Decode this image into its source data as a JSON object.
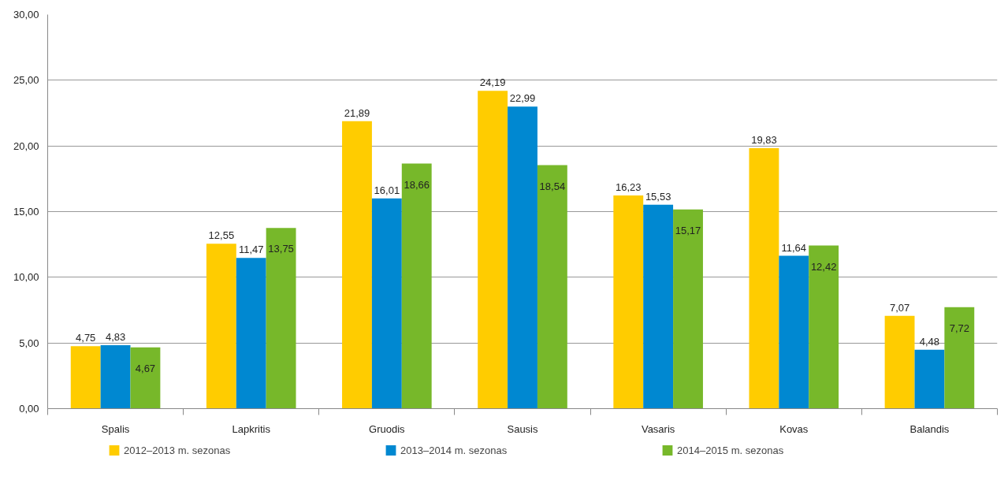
{
  "chart_data": {
    "type": "bar",
    "categories": [
      "Spalis",
      "Lapkritis",
      "Gruodis",
      "Sausis",
      "Vasaris",
      "Kovas",
      "Balandis"
    ],
    "series": [
      {
        "name": "2012–2013 m. sezonas",
        "color": "#ffcc00",
        "values": [
          4.75,
          12.55,
          21.89,
          24.19,
          16.23,
          19.83,
          7.07
        ],
        "value_labels": [
          "4,75",
          "12,55",
          "21,89",
          "24,19",
          "16,23",
          "19,83",
          "7,07"
        ]
      },
      {
        "name": "2013–2014 m. sezonas",
        "color": "#0088d1",
        "values": [
          4.83,
          11.47,
          16.01,
          22.99,
          15.53,
          11.64,
          4.48
        ],
        "value_labels": [
          "4,83",
          "11,47",
          "16,01",
          "22,99",
          "15,53",
          "11,64",
          "4,48"
        ]
      },
      {
        "name": "2014–2015 m. sezonas",
        "color": "#77b82a",
        "values": [
          4.67,
          13.75,
          18.66,
          18.54,
          15.17,
          12.42,
          7.72
        ],
        "value_labels": [
          "4,67",
          "13,75",
          "18,66",
          "18,54",
          "15,17",
          "12,42",
          "7,72"
        ]
      }
    ],
    "ylim": [
      0,
      30
    ],
    "yticks": [
      {
        "value": 0,
        "label": "0,00"
      },
      {
        "value": 5,
        "label": "5,00"
      },
      {
        "value": 10,
        "label": "10,00"
      },
      {
        "value": 15,
        "label": "15,00"
      },
      {
        "value": 20,
        "label": "20,00"
      },
      {
        "value": 25,
        "label": "25,00"
      },
      {
        "value": 30,
        "label": "30,00"
      }
    ],
    "grid": "y",
    "legend": "bottom"
  }
}
